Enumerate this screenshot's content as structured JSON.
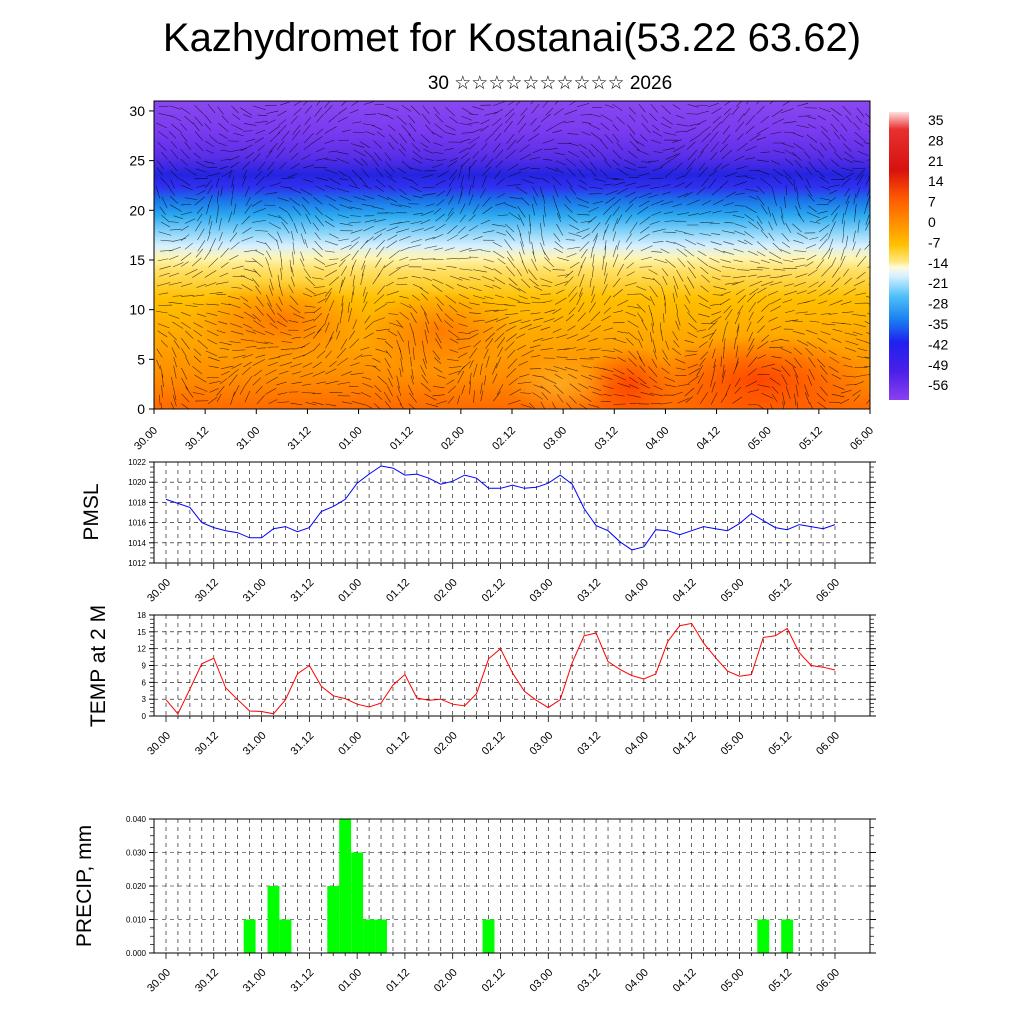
{
  "title": "Kazhydromet for Kostanai(53.22 63.62)",
  "subtitle": "30 ☆☆☆☆☆☆☆☆☆☆ 2026",
  "colors": {
    "pmsl_line": "#0000ff",
    "temp_line": "#ff0000",
    "precip_bar": "#00ff00",
    "grid": "#000000"
  },
  "x_tick_labels": [
    "30.00",
    "30.12",
    "31.00",
    "31.12",
    "01.00",
    "01.12",
    "02.00",
    "02.12",
    "03.00",
    "03.12",
    "04.00",
    "04.12",
    "05.00",
    "05.12",
    "06.00"
  ],
  "chart_data": [
    {
      "type": "heatmap",
      "name": "vertical-temperature-cross-section",
      "y_ticks": [
        0,
        5,
        10,
        15,
        20,
        25,
        30
      ],
      "ylim": [
        0,
        31
      ],
      "x_tick_labels": [
        "30.00",
        "30.12",
        "31.00",
        "31.12",
        "01.00",
        "01.12",
        "02.00",
        "02.12",
        "03.00",
        "03.12",
        "04.00",
        "04.12",
        "05.00",
        "05.12",
        "06.00"
      ],
      "colorbar_labels": [
        "35",
        "28",
        "21",
        "14",
        "7",
        "0",
        "-7",
        "-14",
        "-21",
        "-28",
        "-35",
        "-42",
        "-49",
        "-56"
      ],
      "overlay": "wind streamlines"
    },
    {
      "type": "line",
      "name": "pmsl",
      "ylabel": "PMSL",
      "ylim": [
        1012,
        1022
      ],
      "y_ticks": [
        1012,
        1014,
        1016,
        1018,
        1020,
        1022
      ],
      "step_hours": 3,
      "values": [
        1018.3,
        1017.9,
        1017.5,
        1016.0,
        1015.5,
        1015.2,
        1015.0,
        1014.5,
        1014.5,
        1015.4,
        1015.6,
        1015.1,
        1015.5,
        1017.1,
        1017.6,
        1018.3,
        1019.9,
        1020.8,
        1021.6,
        1021.4,
        1020.7,
        1020.8,
        1020.4,
        1019.8,
        1020.1,
        1020.7,
        1020.4,
        1019.4,
        1019.4,
        1019.7,
        1019.4,
        1019.5,
        1019.9,
        1020.7,
        1019.8,
        1017.4,
        1015.7,
        1015.2,
        1014.1,
        1013.3,
        1013.6,
        1015.3,
        1015.2,
        1014.8,
        1015.2,
        1015.6,
        1015.4,
        1015.2,
        1015.9,
        1016.9,
        1016.2,
        1015.5,
        1015.3,
        1015.8,
        1015.6,
        1015.4,
        1015.8
      ]
    },
    {
      "type": "line",
      "name": "temp-2m",
      "ylabel": "TEMP at 2 M",
      "ylim": [
        0,
        18
      ],
      "y_ticks": [
        0,
        3,
        6,
        9,
        12,
        15,
        18
      ],
      "step_hours": 3,
      "values": [
        2.9,
        0.4,
        4.8,
        9.3,
        10.3,
        5.0,
        2.9,
        0.9,
        0.8,
        0.4,
        2.9,
        7.5,
        9.0,
        5.3,
        3.6,
        3.1,
        2.1,
        1.6,
        2.3,
        5.5,
        7.4,
        3.2,
        2.8,
        3.0,
        2.1,
        1.8,
        4.0,
        10.2,
        12.0,
        7.7,
        4.4,
        2.8,
        1.5,
        2.9,
        9.5,
        14.3,
        14.8,
        9.7,
        8.3,
        7.2,
        6.6,
        7.5,
        13.3,
        16.1,
        16.5,
        13.0,
        10.4,
        8.0,
        7.1,
        7.4,
        14.0,
        14.3,
        15.6,
        11.3,
        9.0,
        8.7,
        8.2
      ]
    },
    {
      "type": "bar",
      "name": "precipitation",
      "ylabel": "PRECIP, mm",
      "ylim": [
        0,
        0.04
      ],
      "y_tick_labels": [
        "0.000",
        "0.010",
        "0.020",
        "0.030",
        "0.040"
      ],
      "step_hours": 3,
      "bars": [
        {
          "hour": 21,
          "value": 0.01
        },
        {
          "hour": 27,
          "value": 0.02
        },
        {
          "hour": 30,
          "value": 0.01
        },
        {
          "hour": 42,
          "value": 0.02
        },
        {
          "hour": 45,
          "value": 0.04
        },
        {
          "hour": 48,
          "value": 0.03
        },
        {
          "hour": 51,
          "value": 0.01
        },
        {
          "hour": 54,
          "value": 0.01
        },
        {
          "hour": 81,
          "value": 0.01
        },
        {
          "hour": 150,
          "value": 0.01
        },
        {
          "hour": 156,
          "value": 0.01
        }
      ]
    }
  ]
}
